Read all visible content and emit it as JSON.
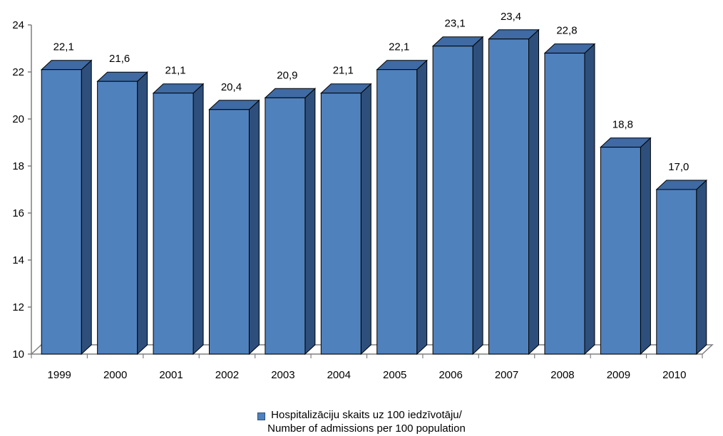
{
  "chart_data": {
    "type": "bar",
    "categories": [
      "1999",
      "2000",
      "2001",
      "2002",
      "2003",
      "2004",
      "2005",
      "2006",
      "2007",
      "2008",
      "2009",
      "2010"
    ],
    "values": [
      22.1,
      21.6,
      21.1,
      20.4,
      20.9,
      21.1,
      22.1,
      23.1,
      23.4,
      22.8,
      18.8,
      17.0
    ],
    "value_labels": [
      "22,1",
      "21,6",
      "21,1",
      "20,4",
      "20,9",
      "21,1",
      "22,1",
      "23,1",
      "23,4",
      "22,8",
      "18,8",
      "17,0"
    ],
    "ylim": [
      10,
      24
    ],
    "yticks": [
      10,
      12,
      14,
      16,
      18,
      20,
      22,
      24
    ],
    "grid": false,
    "legend_placement": "bottom",
    "colors": {
      "bar_front": "#4f81bd",
      "bar_side": "#2e4f7c",
      "bar_top": "#3f6aa3",
      "edge": "#000000",
      "axis": "#7f7f7f"
    },
    "legend": {
      "line1": "Hospitalizāciju skaits uz 100 iedzīvotāju/",
      "line2": "Number of admissions per 100 population"
    }
  }
}
